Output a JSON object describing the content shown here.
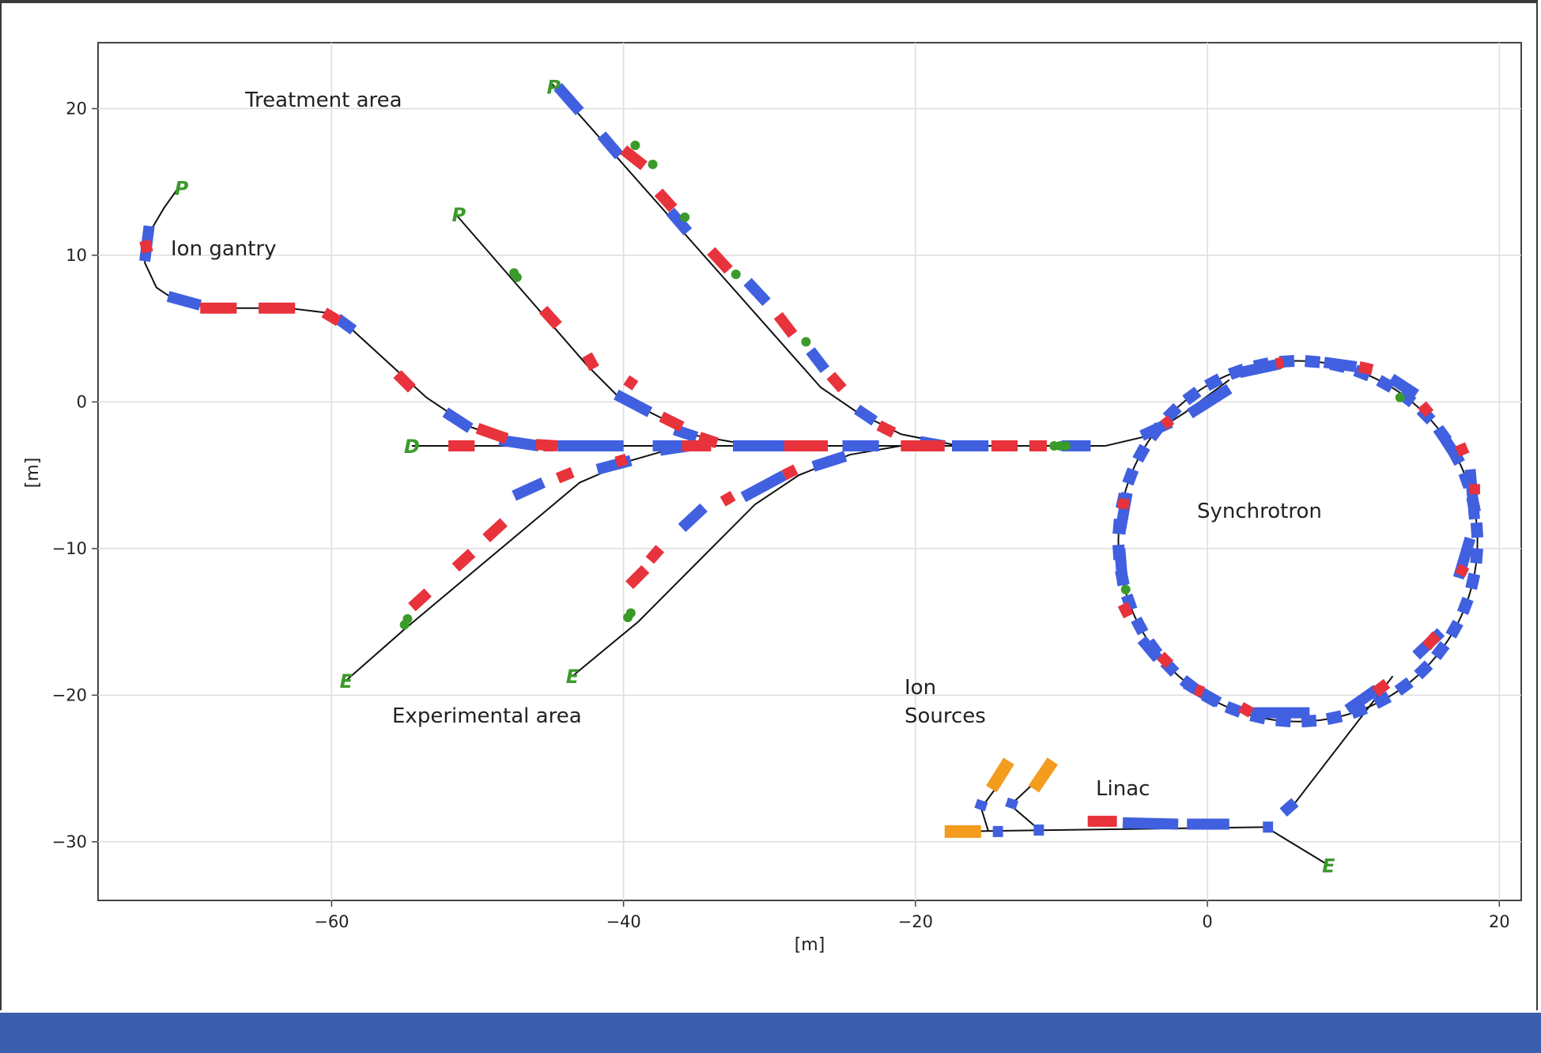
{
  "axes": {
    "x_ticks": [
      {
        "value": -60,
        "label": "−60"
      },
      {
        "value": -40,
        "label": "−40"
      },
      {
        "value": -20,
        "label": "−20"
      },
      {
        "value": 0,
        "label": "0"
      },
      {
        "value": 20,
        "label": "20"
      }
    ],
    "y_ticks": [
      {
        "value": 20,
        "label": "20"
      },
      {
        "value": 10,
        "label": "10"
      },
      {
        "value": 0,
        "label": "0"
      },
      {
        "value": -10,
        "label": "−10"
      },
      {
        "value": -20,
        "label": "−20"
      },
      {
        "value": -30,
        "label": "−30"
      }
    ],
    "xlabel": "[m]",
    "ylabel": "[m]",
    "xlim": [
      -76,
      21.5
    ],
    "ylim": [
      -34,
      24.5
    ],
    "grid": true
  },
  "labels": {
    "treatment_area": "Treatment area",
    "ion_gantry": "Ion gantry",
    "experimental_area": "Experimental area",
    "ion_sources_line1": "Ion",
    "ion_sources_line2": "Sources",
    "linac": "Linac",
    "synchrotron": "Synchrotron"
  },
  "colors": {
    "dipole": "#4060e0",
    "quadrupole": "#e8323c",
    "marker": "#3a9a2a",
    "source": "#f39c1e",
    "beamline": "#111111",
    "grid": "#dddddd",
    "footer": "#3c5fad"
  },
  "markers": [
    {
      "text": "P",
      "x": -70.5,
      "y": 14.6
    },
    {
      "text": "P",
      "x": -51.5,
      "y": 12.8
    },
    {
      "text": "P",
      "x": -45.0,
      "y": 21.5
    },
    {
      "text": "D",
      "x": -54.5,
      "y": -3.0
    },
    {
      "text": "E",
      "x": -59.0,
      "y": -19.0
    },
    {
      "text": "E",
      "x": -43.5,
      "y": -18.7
    },
    {
      "text": "E",
      "x": 8.3,
      "y": -31.6
    }
  ],
  "beamlines": {
    "main": [
      [
        -54.5,
        -3
      ],
      [
        -7,
        -3
      ]
    ],
    "synchrotron": {
      "cx": 6.2,
      "cy": -9.5,
      "r": 12.3
    },
    "merge": [
      [
        -7,
        -3
      ],
      [
        -4,
        -2.3
      ],
      [
        -1.5,
        -0.7
      ],
      [
        1.5,
        1.5
      ]
    ],
    "gantry": [
      [
        -70.5,
        14.6
      ],
      [
        -71.5,
        13.2
      ],
      [
        -72.5,
        11.5
      ],
      [
        -72.8,
        9.5
      ],
      [
        -72,
        7.8
      ],
      [
        -70.5,
        6.8
      ],
      [
        -68,
        6.4
      ],
      [
        -63,
        6.4
      ],
      [
        -60.5,
        6.1
      ],
      [
        -59,
        5.3
      ],
      [
        -53.5,
        0.3
      ],
      [
        -50.5,
        -1.7
      ],
      [
        -47,
        -2.9
      ],
      [
        -44,
        -3
      ]
    ],
    "treatment_short": [
      [
        -51.5,
        12.8
      ],
      [
        -42.5,
        2.5
      ],
      [
        -40.5,
        0.5
      ],
      [
        -38,
        -0.8
      ],
      [
        -35,
        -2.3
      ],
      [
        -31,
        -3
      ]
    ],
    "treatment_long": [
      [
        -45,
        21.8
      ],
      [
        -26.5,
        1
      ],
      [
        -24,
        -0.7
      ],
      [
        -21,
        -2.2
      ],
      [
        -17,
        -3
      ]
    ],
    "exp_left": [
      [
        -59,
        -19
      ],
      [
        -55,
        -15.5
      ],
      [
        -46,
        -8
      ],
      [
        -43,
        -5.5
      ],
      [
        -39.5,
        -4
      ],
      [
        -36,
        -3
      ]
    ],
    "exp_right": [
      [
        -43.5,
        -18.7
      ],
      [
        -39,
        -15
      ],
      [
        -31,
        -7
      ],
      [
        -28,
        -5
      ],
      [
        -24.5,
        -3.6
      ],
      [
        -21,
        -3
      ]
    ],
    "linac": [
      [
        -17.5,
        -29.3
      ],
      [
        4,
        -29
      ]
    ],
    "linac_extract": [
      [
        4,
        -29
      ],
      [
        8.3,
        -31.6
      ]
    ],
    "linac_to_sync": [
      [
        5.5,
        -28
      ],
      [
        12.7,
        -18.7
      ]
    ],
    "src1": [
      [
        -13.5,
        -25
      ],
      [
        -15.5,
        -27.7
      ],
      [
        -15,
        -29.3
      ]
    ],
    "src2": [
      [
        -10.8,
        -25
      ],
      [
        -13.5,
        -27.5
      ],
      [
        -11.5,
        -29.2
      ]
    ]
  },
  "magnets": {
    "dipole_segments": [
      [
        [
          -44.5,
          -3
        ],
        [
          -40,
          -3
        ]
      ],
      [
        [
          -38,
          -3
        ],
        [
          -35,
          -3
        ]
      ],
      [
        [
          -32.5,
          -3
        ],
        [
          -28,
          -3
        ]
      ],
      [
        [
          -25,
          -3
        ],
        [
          -22.5,
          -3
        ]
      ],
      [
        [
          -17.5,
          -3
        ],
        [
          -15,
          -3
        ]
      ],
      [
        [
          -10,
          -3
        ],
        [
          -8,
          -3
        ]
      ],
      [
        [
          -72.5,
          12
        ],
        [
          -72.8,
          9.6
        ]
      ],
      [
        [
          -71.2,
          7.2
        ],
        [
          -69,
          6.6
        ]
      ],
      [
        [
          -59.6,
          5.7
        ],
        [
          -58.5,
          4.9
        ]
      ],
      [
        [
          -52.2,
          -0.7
        ],
        [
          -50.5,
          -1.8
        ]
      ],
      [
        [
          -48.5,
          -2.6
        ],
        [
          -45.8,
          -3
        ]
      ],
      [
        [
          -40.5,
          0.5
        ],
        [
          -38.2,
          -0.7
        ]
      ],
      [
        [
          -36.5,
          -1.9
        ],
        [
          -35,
          -2.4
        ]
      ],
      [
        [
          -32.5,
          -3
        ],
        [
          -31,
          -3
        ]
      ],
      [
        [
          -44.5,
          21.5
        ],
        [
          -43,
          19.8
        ]
      ],
      [
        [
          -41.5,
          18.2
        ],
        [
          -40.3,
          16.8
        ]
      ],
      [
        [
          -36.8,
          13
        ],
        [
          -35.6,
          11.6
        ]
      ],
      [
        [
          -31.5,
          8.2
        ],
        [
          -30.2,
          6.8
        ]
      ],
      [
        [
          -27.2,
          3.5
        ],
        [
          -26.2,
          2.2
        ]
      ],
      [
        [
          -24,
          -0.5
        ],
        [
          -22.8,
          -1.3
        ]
      ],
      [
        [
          -19.7,
          -2.7
        ],
        [
          -18,
          -3
        ]
      ],
      [
        [
          -47.5,
          -6.4
        ],
        [
          -45.5,
          -5.5
        ]
      ],
      [
        [
          -41.8,
          -4.6
        ],
        [
          -39.5,
          -4
        ]
      ],
      [
        [
          -37.5,
          -3.3
        ],
        [
          -35.5,
          -3
        ]
      ],
      [
        [
          -36,
          -8.6
        ],
        [
          -34.5,
          -7.2
        ]
      ],
      [
        [
          -31.8,
          -6.5
        ],
        [
          -29,
          -5
        ]
      ],
      [
        [
          -27,
          -4.4
        ],
        [
          -24.8,
          -3.7
        ]
      ],
      [
        [
          -4.5,
          -2.3
        ],
        [
          -2.5,
          -1.4
        ]
      ],
      [
        [
          -1.2,
          -0.8
        ],
        [
          1.5,
          0.9
        ]
      ],
      [
        [
          -5.5,
          -6.2
        ],
        [
          -6,
          -9
        ]
      ],
      [
        [
          -6,
          -10
        ],
        [
          -5.8,
          -12.5
        ]
      ],
      [
        [
          -4.5,
          -16.2
        ],
        [
          -3.4,
          -17.5
        ]
      ],
      [
        [
          -1.5,
          -19.2
        ],
        [
          0.8,
          -20.5
        ]
      ],
      [
        [
          3,
          -21.2
        ],
        [
          7,
          -21.2
        ]
      ],
      [
        [
          9.6,
          -21
        ],
        [
          11.6,
          -19.6
        ]
      ],
      [
        [
          14.3,
          -17.3
        ],
        [
          16,
          -15.7
        ]
      ],
      [
        [
          17.2,
          -12
        ],
        [
          18,
          -9.3
        ]
      ],
      [
        [
          18.3,
          -8
        ],
        [
          18,
          -4.6
        ]
      ],
      [
        [
          16.9,
          -3.5
        ],
        [
          15.8,
          -1.8
        ]
      ],
      [
        [
          14.3,
          0.5
        ],
        [
          12.6,
          1.6
        ]
      ],
      [
        [
          10.2,
          2.4
        ],
        [
          8,
          2.7
        ]
      ],
      [
        [
          5,
          2.6
        ],
        [
          2.2,
          2
        ]
      ],
      [
        [
          -5.8,
          -28.7
        ],
        [
          -2,
          -28.8
        ]
      ],
      [
        [
          -1.4,
          -28.8
        ],
        [
          1.5,
          -28.8
        ]
      ],
      [
        [
          3.8,
          -29
        ],
        [
          4.5,
          -29
        ]
      ],
      [
        [
          5.2,
          -28
        ],
        [
          6,
          -27.3
        ]
      ]
    ],
    "quadrupole_segments": [
      [
        [
          -52,
          -3
        ],
        [
          -50.2,
          -3
        ]
      ],
      [
        [
          -45.5,
          -3
        ],
        [
          -44.8,
          -3
        ]
      ],
      [
        [
          -36,
          -3
        ],
        [
          -34,
          -3
        ]
      ],
      [
        [
          -29,
          -3
        ],
        [
          -26,
          -3
        ]
      ],
      [
        [
          -21,
          -3
        ],
        [
          -18,
          -3
        ]
      ],
      [
        [
          -14.8,
          -3
        ],
        [
          -13,
          -3
        ]
      ],
      [
        [
          -12.2,
          -3
        ],
        [
          -11,
          -3
        ]
      ],
      [
        [
          -72.8,
          11
        ],
        [
          -72.6,
          10.2
        ]
      ],
      [
        [
          -69,
          6.4
        ],
        [
          -66.5,
          6.4
        ]
      ],
      [
        [
          -65,
          6.4
        ],
        [
          -62.5,
          6.4
        ]
      ],
      [
        [
          -60.5,
          6.1
        ],
        [
          -59.5,
          5.5
        ]
      ],
      [
        [
          -55.5,
          1.9
        ],
        [
          -54.5,
          0.9
        ]
      ],
      [
        [
          -50,
          -1.8
        ],
        [
          -48,
          -2.5
        ]
      ],
      [
        [
          -46,
          -2.9
        ],
        [
          -44.5,
          -3
        ]
      ],
      [
        [
          -45.5,
          6.3
        ],
        [
          -44.5,
          5.2
        ]
      ],
      [
        [
          -42.5,
          3.2
        ],
        [
          -42,
          2.3
        ]
      ],
      [
        [
          -39.8,
          1.5
        ],
        [
          -39.2,
          1.1
        ]
      ],
      [
        [
          -37.4,
          -1
        ],
        [
          -36,
          -1.7
        ]
      ],
      [
        [
          -34.8,
          -2.4
        ],
        [
          -33.6,
          -2.8
        ]
      ],
      [
        [
          -40,
          17.2
        ],
        [
          -38.6,
          16.1
        ]
      ],
      [
        [
          -37.6,
          14.3
        ],
        [
          -36.6,
          13.2
        ]
      ],
      [
        [
          -34,
          10.3
        ],
        [
          -32.8,
          9
        ]
      ],
      [
        [
          -29.4,
          5.9
        ],
        [
          -28.4,
          4.6
        ]
      ],
      [
        [
          -25.8,
          1.8
        ],
        [
          -25,
          0.9
        ]
      ],
      [
        [
          -22.5,
          -1.6
        ],
        [
          -21.5,
          -2.1
        ]
      ],
      [
        [
          -54.5,
          -14
        ],
        [
          -53.4,
          -13
        ]
      ],
      [
        [
          -51.5,
          -11.3
        ],
        [
          -50.4,
          -10.3
        ]
      ],
      [
        [
          -49.4,
          -9.3
        ],
        [
          -48.2,
          -8.2
        ]
      ],
      [
        [
          -44.5,
          -5.2
        ],
        [
          -43.5,
          -4.8
        ]
      ],
      [
        [
          -40.5,
          -4.1
        ],
        [
          -39.8,
          -3.9
        ]
      ],
      [
        [
          -39.6,
          -12.5
        ],
        [
          -38.5,
          -11.4
        ]
      ],
      [
        [
          -38.2,
          -10.8
        ],
        [
          -37.5,
          -10
        ]
      ],
      [
        [
          -33.2,
          -6.8
        ],
        [
          -32.5,
          -6.4
        ]
      ],
      [
        [
          -29,
          -5
        ],
        [
          -28.2,
          -4.6
        ]
      ],
      [
        [
          -3,
          -1.6
        ],
        [
          -2.5,
          -1.2
        ]
      ],
      [
        [
          -5.8,
          -7.3
        ],
        [
          -5.7,
          -6.6
        ]
      ],
      [
        [
          -5.8,
          -13.8
        ],
        [
          -5.4,
          -14.6
        ]
      ],
      [
        [
          -3.2,
          -17.3
        ],
        [
          -2.6,
          -17.9
        ]
      ],
      [
        [
          -0.8,
          -19.6
        ],
        [
          -0.3,
          -19.8
        ]
      ],
      [
        [
          2.3,
          -20.8
        ],
        [
          3,
          -21.2
        ]
      ],
      [
        [
          11.5,
          -19.8
        ],
        [
          12.3,
          -19.2
        ]
      ],
      [
        [
          15,
          -16.7
        ],
        [
          15.7,
          -15.9
        ]
      ],
      [
        [
          17.3,
          -11.8
        ],
        [
          17.6,
          -11.2
        ]
      ],
      [
        [
          18.3,
          -6.3
        ],
        [
          18.3,
          -5.6
        ]
      ],
      [
        [
          17.6,
          -3.6
        ],
        [
          17.3,
          -2.9
        ]
      ],
      [
        [
          15.2,
          -0.8
        ],
        [
          14.7,
          -0.2
        ]
      ],
      [
        [
          11.3,
          2.2
        ],
        [
          10.4,
          2.4
        ]
      ],
      [
        [
          5.2,
          2.7
        ],
        [
          4.7,
          2.6
        ]
      ],
      [
        [
          -8.2,
          -28.6
        ],
        [
          -6.2,
          -28.6
        ]
      ]
    ],
    "green_markers": [
      [
        -39.2,
        17.5
      ],
      [
        -38,
        16.2
      ],
      [
        -35.8,
        12.6
      ],
      [
        -32.3,
        8.7
      ],
      [
        -27.5,
        4.1
      ],
      [
        -47.5,
        8.8
      ],
      [
        -47.3,
        8.5
      ],
      [
        -55,
        -15.2
      ],
      [
        -54.8,
        -14.8
      ],
      [
        -39.7,
        -14.7
      ],
      [
        -39.5,
        -14.4
      ],
      [
        -10.5,
        -3
      ],
      [
        -9.7,
        -3
      ],
      [
        -10.1,
        -3
      ],
      [
        -5.6,
        -12.8
      ],
      [
        13.2,
        0.3
      ]
    ],
    "sources": [
      [
        [
          -18,
          -29.3
        ],
        [
          -15.5,
          -29.3
        ]
      ],
      [
        [
          -14.8,
          -26.4
        ],
        [
          -13.6,
          -24.5
        ]
      ],
      [
        [
          -11.9,
          -26.4
        ],
        [
          -10.6,
          -24.5
        ]
      ]
    ],
    "source_dipoles": [
      [
        [
          -15.6,
          -27.8
        ],
        [
          -15.4,
          -27.2
        ]
      ],
      [
        [
          -13.5,
          -27.7
        ],
        [
          -13.3,
          -27.1
        ]
      ],
      [
        [
          -14.7,
          -29.3
        ],
        [
          -14,
          -29.3
        ]
      ],
      [
        [
          -11.9,
          -29.2
        ],
        [
          -11.2,
          -29.2
        ]
      ]
    ]
  }
}
